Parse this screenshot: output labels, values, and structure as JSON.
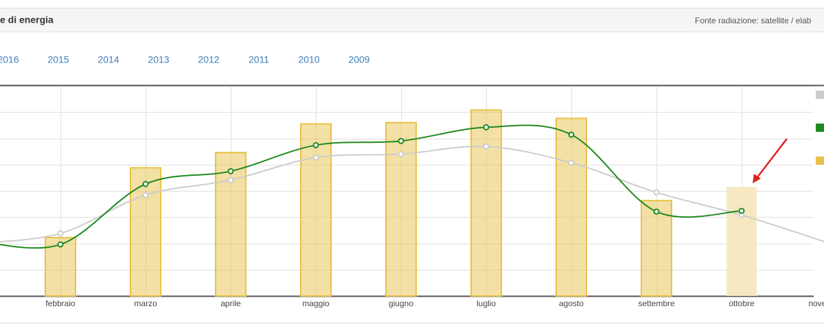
{
  "header": {
    "title": "e di energia",
    "source": "Fonte radiazione: satellite / elab"
  },
  "tabs": [
    "2016",
    "2015",
    "2014",
    "2013",
    "2012",
    "2011",
    "2010",
    "2009"
  ],
  "chart_data": {
    "type": "bar-line",
    "categories": [
      null,
      "febbraio",
      "marzo",
      "aprile",
      "maggio",
      "giugno",
      "luglio",
      "agosto",
      "settembre",
      "ottobre",
      "novembre"
    ],
    "bars": {
      "color": "#e8c14a",
      "values": [
        null,
        2.22,
        4.88,
        5.46,
        6.55,
        6.6,
        7.08,
        6.76,
        3.63,
        4.15,
        null
      ],
      "colors": [
        null,
        "#e8c14a",
        "#e8c14a",
        "#e8c14a",
        "#e8c14a",
        "#e8c14a",
        "#e8c14a",
        "#e8c14a",
        "#e8c14a",
        "#f6e9c2",
        null
      ]
    },
    "series": [
      {
        "color": "#cccccc",
        "values": [
          2.0,
          2.38,
          3.84,
          4.41,
          5.27,
          5.4,
          5.69,
          5.07,
          3.94,
          3.08,
          2.04
        ]
      },
      {
        "color": "#1f8a1f",
        "values": [
          2.1,
          1.96,
          4.26,
          4.75,
          5.74,
          5.9,
          6.42,
          6.14,
          3.21,
          3.24,
          null
        ]
      }
    ],
    "ylim": [
      0,
      8
    ],
    "yticks": [
      0,
      1,
      2,
      3,
      4,
      5,
      6,
      7,
      8
    ],
    "grid": true
  }
}
